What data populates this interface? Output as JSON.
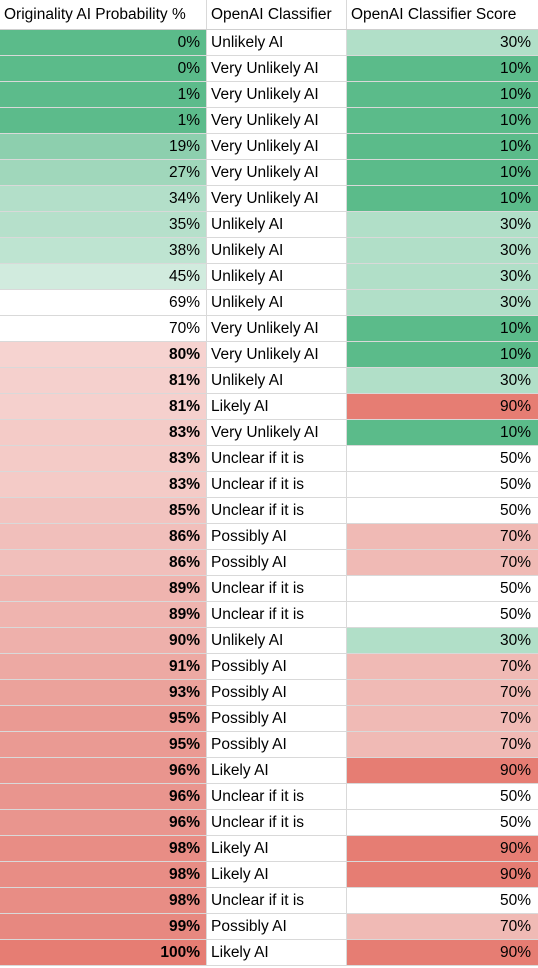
{
  "columns": [
    "Originality AI Probability %",
    "OpenAI Classifier",
    "OpenAI Classifier Score"
  ],
  "colors": {
    "green_strong": "#5bbb8a",
    "green_light": "#b1dfc8",
    "red_strong": "#e67d73",
    "red_light": "#f0bab5"
  },
  "rows": [
    {
      "prob": "0%",
      "classifier": "Unlikely AI",
      "score": "30%",
      "bold": false,
      "prob_color": "#5bbb8a",
      "score_color": "#b1dfc8"
    },
    {
      "prob": "0%",
      "classifier": "Very Unlikely AI",
      "score": "10%",
      "bold": false,
      "prob_color": "#5bbb8a",
      "score_color": "#5bbb8a"
    },
    {
      "prob": "1%",
      "classifier": "Very Unlikely AI",
      "score": "10%",
      "bold": false,
      "prob_color": "#5cbb8b",
      "score_color": "#5bbb8a"
    },
    {
      "prob": "1%",
      "classifier": "Very Unlikely AI",
      "score": "10%",
      "bold": false,
      "prob_color": "#5cbb8b",
      "score_color": "#5bbb8a"
    },
    {
      "prob": "19%",
      "classifier": "Very Unlikely AI",
      "score": "10%",
      "bold": false,
      "prob_color": "#8dcfae",
      "score_color": "#5bbb8a"
    },
    {
      "prob": "27%",
      "classifier": "Very Unlikely AI",
      "score": "10%",
      "bold": false,
      "prob_color": "#a0d7bb",
      "score_color": "#5bbb8a"
    },
    {
      "prob": "34%",
      "classifier": "Very Unlikely AI",
      "score": "10%",
      "bold": false,
      "prob_color": "#b3dfc9",
      "score_color": "#5bbb8a"
    },
    {
      "prob": "35%",
      "classifier": "Unlikely AI",
      "score": "30%",
      "bold": false,
      "prob_color": "#b6e0cb",
      "score_color": "#b1dfc8"
    },
    {
      "prob": "38%",
      "classifier": "Unlikely AI",
      "score": "30%",
      "bold": false,
      "prob_color": "#bee4d1",
      "score_color": "#b1dfc8"
    },
    {
      "prob": "45%",
      "classifier": "Unlikely AI",
      "score": "30%",
      "bold": false,
      "prob_color": "#d1ebde",
      "score_color": "#b1dfc8"
    },
    {
      "prob": "69%",
      "classifier": "Unlikely AI",
      "score": "30%",
      "bold": false,
      "prob_color": "#ffffff",
      "score_color": "#b1dfc8"
    },
    {
      "prob": "70%",
      "classifier": "Very Unlikely AI",
      "score": "10%",
      "bold": false,
      "prob_color": "#ffffff",
      "score_color": "#5bbb8a"
    },
    {
      "prob": "80%",
      "classifier": "Very Unlikely AI",
      "score": "10%",
      "bold": true,
      "prob_color": "#f6d3d0",
      "score_color": "#5bbb8a"
    },
    {
      "prob": "81%",
      "classifier": "Unlikely AI",
      "score": "30%",
      "bold": true,
      "prob_color": "#f5d0cd",
      "score_color": "#b1dfc8"
    },
    {
      "prob": "81%",
      "classifier": "Likely AI",
      "score": "90%",
      "bold": true,
      "prob_color": "#f5d0cd",
      "score_color": "#e67d73"
    },
    {
      "prob": "83%",
      "classifier": "Very Unlikely AI",
      "score": "10%",
      "bold": true,
      "prob_color": "#f4cbc7",
      "score_color": "#5bbb8a"
    },
    {
      "prob": "83%",
      "classifier": "Unclear if it is",
      "score": "50%",
      "bold": true,
      "prob_color": "#f4cbc7",
      "score_color": "#ffffff"
    },
    {
      "prob": "83%",
      "classifier": "Unclear if it is",
      "score": "50%",
      "bold": true,
      "prob_color": "#f4cbc7",
      "score_color": "#ffffff"
    },
    {
      "prob": "85%",
      "classifier": "Unclear if it is",
      "score": "50%",
      "bold": true,
      "prob_color": "#f2c3bf",
      "score_color": "#ffffff"
    },
    {
      "prob": "86%",
      "classifier": "Possibly AI",
      "score": "70%",
      "bold": true,
      "prob_color": "#f1bfbb",
      "score_color": "#f0bab5"
    },
    {
      "prob": "86%",
      "classifier": "Possibly AI",
      "score": "70%",
      "bold": true,
      "prob_color": "#f1bfbb",
      "score_color": "#f0bab5"
    },
    {
      "prob": "89%",
      "classifier": "Unclear if it is",
      "score": "50%",
      "bold": true,
      "prob_color": "#efb4af",
      "score_color": "#ffffff"
    },
    {
      "prob": "89%",
      "classifier": "Unclear if it is",
      "score": "50%",
      "bold": true,
      "prob_color": "#efb4af",
      "score_color": "#ffffff"
    },
    {
      "prob": "90%",
      "classifier": "Unlikely AI",
      "score": "30%",
      "bold": true,
      "prob_color": "#eeb0ab",
      "score_color": "#b1dfc8"
    },
    {
      "prob": "91%",
      "classifier": "Possibly AI",
      "score": "70%",
      "bold": true,
      "prob_color": "#eda9a3",
      "score_color": "#f0bab5"
    },
    {
      "prob": "93%",
      "classifier": "Possibly AI",
      "score": "70%",
      "bold": true,
      "prob_color": "#eba29b",
      "score_color": "#f0bab5"
    },
    {
      "prob": "95%",
      "classifier": "Possibly AI",
      "score": "70%",
      "bold": true,
      "prob_color": "#ea9a93",
      "score_color": "#f0bab5"
    },
    {
      "prob": "95%",
      "classifier": "Possibly AI",
      "score": "70%",
      "bold": true,
      "prob_color": "#ea9a93",
      "score_color": "#f0bab5"
    },
    {
      "prob": "96%",
      "classifier": "Likely AI",
      "score": "90%",
      "bold": true,
      "prob_color": "#e9958e",
      "score_color": "#e67d73"
    },
    {
      "prob": "96%",
      "classifier": "Unclear if it is",
      "score": "50%",
      "bold": true,
      "prob_color": "#e9958e",
      "score_color": "#ffffff"
    },
    {
      "prob": "96%",
      "classifier": "Unclear if it is",
      "score": "50%",
      "bold": true,
      "prob_color": "#e9958e",
      "score_color": "#ffffff"
    },
    {
      "prob": "98%",
      "classifier": "Likely AI",
      "score": "90%",
      "bold": true,
      "prob_color": "#e88d85",
      "score_color": "#e67d73"
    },
    {
      "prob": "98%",
      "classifier": "Likely AI",
      "score": "90%",
      "bold": true,
      "prob_color": "#e88d85",
      "score_color": "#e67d73"
    },
    {
      "prob": "98%",
      "classifier": "Unclear if it is",
      "score": "50%",
      "bold": true,
      "prob_color": "#e88d85",
      "score_color": "#ffffff"
    },
    {
      "prob": "99%",
      "classifier": "Possibly AI",
      "score": "70%",
      "bold": true,
      "prob_color": "#e78880",
      "score_color": "#f0bab5"
    },
    {
      "prob": "100%",
      "classifier": "Likely AI",
      "score": "90%",
      "bold": true,
      "prob_color": "#e67d73",
      "score_color": "#e67d73"
    }
  ]
}
